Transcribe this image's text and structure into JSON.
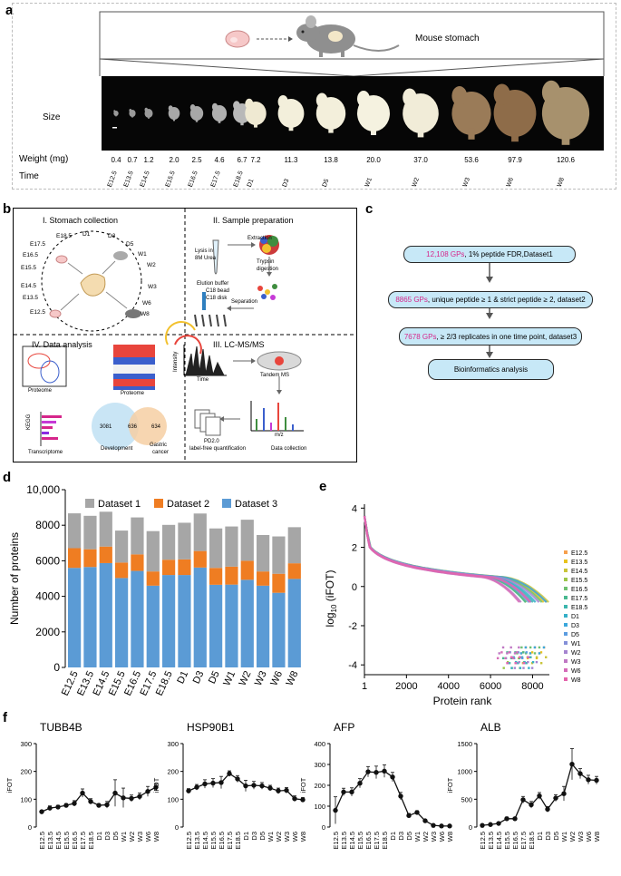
{
  "panels": {
    "a": "a",
    "b": "b",
    "c": "c",
    "d": "d",
    "e": "e",
    "f": "f"
  },
  "colors": {
    "accent_pink": "#d6268b",
    "flow_fill": "#c7e8f7",
    "dataset1": "#a6a6a6",
    "dataset2": "#ef7d22",
    "dataset3": "#5b9bd5"
  },
  "panel_a": {
    "organ_label": "Mouse stomach",
    "size_label": "Size",
    "weight_label": "Weight (mg)",
    "time_label": "Time",
    "weights": [
      "0.4",
      "0.7",
      "1.2",
      "2.0",
      "2.5",
      "4.6",
      "6.7",
      "7.2",
      "11.3",
      "13.8",
      "20.0",
      "37.0",
      "53.6",
      "97.9",
      "120.6"
    ],
    "times": [
      "E12.5",
      "E13.5",
      "E14.5",
      "E15.5",
      "E16.5",
      "E17.5",
      "E18.5",
      "D1",
      "D3",
      "D5",
      "W1",
      "W2",
      "W3",
      "W6",
      "W8"
    ]
  },
  "panel_b": {
    "q1_title": "I. Stomach collection",
    "q2_title": "II. Sample preparation",
    "q3_title": "III. LC-MS/MS",
    "q4_title": "IV. Data analysis",
    "q1_timepoints": [
      "E18.5",
      "D1",
      "D3",
      "D5",
      "E17.5",
      "W1",
      "E16.5",
      "W2",
      "E15.5",
      "E14.5",
      "W3",
      "E13.5",
      "W6",
      "E12.5",
      "W8"
    ],
    "q2_labels": [
      "Lysis in",
      "8M Urea",
      "Extraction",
      "Trypsin",
      "digestion",
      "Elution buffer",
      "C18 bead",
      "C18 disk",
      "Separation"
    ],
    "q3_labels": [
      "Intensity",
      "Time",
      "Tandem MS",
      "PD2.0",
      "label-free quantification",
      "m/z",
      "Data collection"
    ],
    "q4_labels": [
      "Proteome",
      "Proteome",
      "KEGG",
      "Transcriptome",
      "3081",
      "636",
      "634",
      "Development",
      "Gastric",
      "cancer"
    ]
  },
  "panel_c": {
    "steps": [
      {
        "highlight": "12,108 GPs",
        "rest": ", 1% peptide FDR,Dataset1"
      },
      {
        "highlight": "8865 GPs",
        "rest": ", unique peptide ≥ 1 & strict peptide ≥ 2, dataset2"
      },
      {
        "highlight": "7678 GPs",
        "rest": ", ≥ 2/3 replicates in one time point, dataset3"
      },
      {
        "highlight": "",
        "rest": "Bioinformatics analysis"
      }
    ]
  },
  "chart_data": [
    {
      "type": "bar",
      "panel": "d",
      "categories": [
        "E12.5",
        "E13.5",
        "E14.5",
        "E15.5",
        "E16.5",
        "E17.5",
        "E18.5",
        "D1",
        "D3",
        "D5",
        "W1",
        "W2",
        "W3",
        "W6",
        "W8"
      ],
      "series": [
        {
          "name": "Dataset 3",
          "values": [
            5600,
            5650,
            5870,
            5030,
            5430,
            4600,
            5200,
            5200,
            5620,
            4650,
            4660,
            4930,
            4600,
            4200,
            4980
          ]
        },
        {
          "name": "Dataset 2",
          "values": [
            1110,
            1000,
            930,
            870,
            930,
            800,
            860,
            880,
            930,
            950,
            1010,
            1070,
            800,
            1070,
            880
          ]
        },
        {
          "name": "Dataset 1",
          "values": [
            1960,
            1880,
            1960,
            1800,
            2080,
            2270,
            1960,
            2060,
            2110,
            2220,
            2260,
            2310,
            2050,
            2100,
            2030
          ]
        }
      ],
      "title": "",
      "legend": [
        "Dataset 1",
        "Dataset 2",
        "Dataset 3"
      ],
      "ylabel": "Number of proteins",
      "ylim": [
        0,
        10000
      ],
      "yticks": [
        "0",
        "2000",
        "4000",
        "6000",
        "8000",
        "10,000"
      ]
    },
    {
      "type": "scatter",
      "panel": "e",
      "xlabel": "Protein rank",
      "ylabel": "log10 (iFOT)",
      "ylabel_main": "log",
      "ylabel_sub": "10",
      "ylabel_rest": " (iFOT)",
      "xlim": [
        1,
        8800
      ],
      "ylim": [
        -4.5,
        4.2
      ],
      "xticks": [
        "1",
        "2000",
        "4000",
        "6000",
        "8000"
      ],
      "yticks": [
        "4",
        "2",
        "0",
        "-2",
        "-4"
      ],
      "series_names": [
        "E12.5",
        "E13.5",
        "E14.5",
        "E15.5",
        "E16.5",
        "E17.5",
        "E18.5",
        "D1",
        "D3",
        "D5",
        "W1",
        "W2",
        "W3",
        "W6",
        "W8"
      ],
      "series_counts": [
        8670,
        8530,
        8760,
        7700,
        8440,
        7670,
        8020,
        8140,
        8660,
        7820,
        7930,
        8310,
        7450,
        7370,
        7890
      ],
      "series_colors": [
        "#f6a04d",
        "#e8c21c",
        "#c9c438",
        "#9cc64a",
        "#6fc070",
        "#48b88f",
        "#3cb6ad",
        "#35b0c8",
        "#3ba7dc",
        "#5b9ce0",
        "#8490d8",
        "#a584d0",
        "#c078c4",
        "#d56cb8",
        "#e464ac"
      ]
    },
    {
      "type": "line",
      "panel": "f",
      "title": "TUBB4B",
      "ylabel": "iFOT",
      "ylim": [
        0,
        300
      ],
      "yticks": [
        "0",
        "100",
        "200",
        "300"
      ],
      "categories": [
        "E12.5",
        "E13.5",
        "E14.5",
        "E15.5",
        "E16.5",
        "E17.5",
        "E18.5",
        "D1",
        "D3",
        "D5",
        "W1",
        "W2",
        "W3",
        "W6",
        "W8"
      ],
      "values": [
        55,
        68,
        72,
        78,
        85,
        122,
        92,
        78,
        80,
        122,
        105,
        103,
        110,
        128,
        143
      ],
      "errors": [
        5,
        8,
        6,
        6,
        10,
        15,
        10,
        6,
        12,
        48,
        35,
        12,
        12,
        18,
        12
      ]
    },
    {
      "type": "line",
      "panel": "f",
      "title": "HSP90B1",
      "ylabel": "iFOT",
      "ylim": [
        0,
        300
      ],
      "yticks": [
        "0",
        "100",
        "200",
        "300"
      ],
      "categories": [
        "E12.5",
        "E13.5",
        "E14.5",
        "E15.5",
        "E16.5",
        "E17.5",
        "E18.5",
        "D1",
        "D3",
        "D5",
        "W1",
        "W2",
        "W3",
        "W6",
        "W8"
      ],
      "values": [
        130,
        143,
        155,
        158,
        160,
        192,
        173,
        148,
        150,
        148,
        140,
        130,
        132,
        102,
        98
      ],
      "errors": [
        8,
        10,
        15,
        16,
        22,
        10,
        12,
        20,
        14,
        12,
        10,
        10,
        10,
        10,
        8
      ]
    },
    {
      "type": "line",
      "panel": "f",
      "title": "AFP",
      "ylabel": "iFOT",
      "ylim": [
        0,
        400
      ],
      "yticks": [
        "0",
        "100",
        "200",
        "300",
        "400"
      ],
      "categories": [
        "E12.5",
        "E13.5",
        "E14.5",
        "E15.5",
        "E16.5",
        "E17.5",
        "E18.5",
        "D1",
        "D3",
        "D5",
        "W1",
        "W2",
        "W3",
        "W6",
        "W8"
      ],
      "values": [
        80,
        168,
        168,
        210,
        265,
        262,
        268,
        240,
        148,
        55,
        70,
        30,
        8,
        5,
        5
      ],
      "errors": [
        65,
        18,
        20,
        22,
        25,
        30,
        30,
        22,
        18,
        10,
        8,
        6,
        3,
        3,
        3
      ]
    },
    {
      "type": "line",
      "panel": "f",
      "title": "ALB",
      "ylabel": "iFOT",
      "ylim": [
        0,
        1500
      ],
      "yticks": [
        "0",
        "500",
        "1000",
        "1500"
      ],
      "categories": [
        "E12.5",
        "E13.5",
        "E14.5",
        "E15.5",
        "E16.5",
        "E17.5",
        "E18.5",
        "D1",
        "D3",
        "D5",
        "W1",
        "W2",
        "W3",
        "W6",
        "W8"
      ],
      "values": [
        30,
        45,
        65,
        150,
        150,
        490,
        400,
        560,
        320,
        520,
        600,
        1130,
        960,
        850,
        840
      ],
      "errors": [
        10,
        10,
        15,
        30,
        20,
        60,
        60,
        60,
        50,
        60,
        130,
        280,
        90,
        80,
        70
      ]
    }
  ]
}
